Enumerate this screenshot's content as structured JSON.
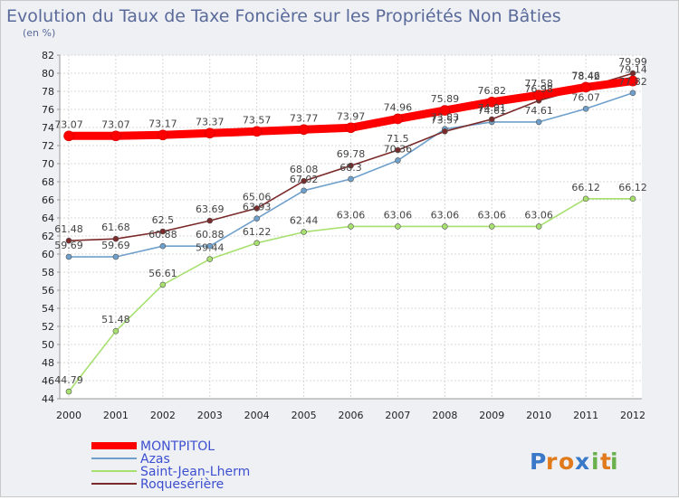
{
  "chart_data": {
    "type": "line",
    "title": "Evolution du Taux de Taxe Foncière sur les Propriétés Non Bâties",
    "ylabel": "(en %)",
    "xlabel": "",
    "ylim": [
      44,
      82
    ],
    "ytick_step": 2,
    "grid": true,
    "legend_position": "bottom-left",
    "categories": [
      "2000",
      "2001",
      "2002",
      "2003",
      "2004",
      "2005",
      "2006",
      "2007",
      "2008",
      "2009",
      "2010",
      "2011",
      "2012"
    ],
    "series": [
      {
        "name": "MONTPITOL",
        "color": "#ff0000",
        "values": [
          73.07,
          73.07,
          73.17,
          73.37,
          73.57,
          73.77,
          73.97,
          74.96,
          75.89,
          76.82,
          77.58,
          78.46,
          79.14
        ]
      },
      {
        "name": "Azas",
        "color": "#6fa0cc",
        "values": [
          59.69,
          59.69,
          60.88,
          60.88,
          63.93,
          67.02,
          68.3,
          70.36,
          73.83,
          74.61,
          74.61,
          76.07,
          77.82
        ]
      },
      {
        "name": "Saint-Jean-Lherm",
        "color": "#a8e070",
        "values": [
          44.79,
          51.48,
          56.61,
          59.44,
          61.22,
          62.44,
          63.06,
          63.06,
          63.06,
          63.06,
          63.06,
          66.12,
          66.12
        ]
      },
      {
        "name": "Roquesérière",
        "color": "#7a2a2a",
        "values": [
          61.48,
          61.68,
          62.5,
          63.69,
          65.06,
          68.08,
          69.78,
          71.5,
          73.57,
          74.91,
          76.98,
          78.42,
          79.99
        ]
      }
    ]
  },
  "brand": {
    "text": "Proxiti",
    "letters": [
      "P",
      "r",
      "o",
      "x",
      "i",
      "t",
      "i"
    ]
  }
}
